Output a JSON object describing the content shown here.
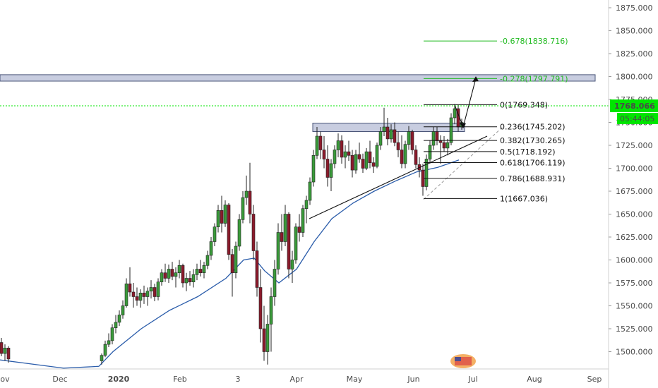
{
  "chart_data": {
    "type": "candlestick",
    "title": "",
    "y_axis": {
      "side": "right",
      "range": [
        1486,
        1886
      ],
      "ticks": [
        "1875.000",
        "1850.000",
        "1825.000",
        "1800.000",
        "1775.000",
        "1750.000",
        "1725.000",
        "1700.000",
        "1675.000",
        "1650.000",
        "1625.000",
        "1600.000",
        "1575.000",
        "1550.000",
        "1525.000",
        "1500.000"
      ]
    },
    "x_axis": {
      "ticks": [
        "ov",
        "Dec",
        "2020",
        "Feb",
        "3",
        "Apr",
        "May",
        "Jun",
        "Jul",
        "Aug",
        "Sep"
      ]
    },
    "last_price": {
      "label": "1768.066",
      "value": 1768.066,
      "countdown": "05:44:05",
      "color": "#00e600"
    },
    "resistance_zone": {
      "low": 1795,
      "high": 1802,
      "color": "#c8cde0"
    },
    "breakout_zone": {
      "low": 1740,
      "high": 1750,
      "color": "#c8cde0"
    },
    "fibonacci": [
      {
        "label": "0(1769.348)",
        "value": 1769.348
      },
      {
        "label": "0.236(1745.202)",
        "value": 1745.202
      },
      {
        "label": "0.382(1730.265)",
        "value": 1730.265
      },
      {
        "label": "0.5(1718.192)",
        "value": 1718.192
      },
      {
        "label": "0.618(1706.119)",
        "value": 1706.119
      },
      {
        "label": "0.786(1688.931)",
        "value": 1688.931
      },
      {
        "label": "1(1667.036)",
        "value": 1667.036
      }
    ],
    "fib_extensions": [
      {
        "label": "-0.678(1838.716)",
        "value": 1838.716,
        "color": "#22bb22"
      },
      {
        "label": "-0.278(1797.791)",
        "value": 1797.791,
        "color": "#22bb22"
      }
    ],
    "moving_average": {
      "color": "#2a5caa",
      "points": [
        [
          0,
          1491
        ],
        [
          40,
          1487
        ],
        [
          90,
          1482
        ],
        [
          140,
          1484
        ],
        [
          160,
          1500
        ],
        [
          200,
          1525
        ],
        [
          240,
          1545
        ],
        [
          280,
          1560
        ],
        [
          320,
          1580
        ],
        [
          345,
          1600
        ],
        [
          360,
          1602
        ],
        [
          375,
          1588
        ],
        [
          395,
          1575
        ],
        [
          420,
          1590
        ],
        [
          445,
          1620
        ],
        [
          470,
          1645
        ],
        [
          500,
          1662
        ],
        [
          530,
          1675
        ],
        [
          560,
          1686
        ],
        [
          590,
          1696
        ],
        [
          620,
          1701
        ],
        [
          650,
          1709
        ]
      ]
    },
    "candles_ohlc": [
      [
        2,
        1510,
        1515,
        1495,
        1498
      ],
      [
        7,
        1498,
        1508,
        1490,
        1504
      ],
      [
        12,
        1504,
        1506,
        1488,
        1492
      ],
      [
        144,
        1490,
        1498,
        1486,
        1496
      ],
      [
        149,
        1496,
        1512,
        1494,
        1508
      ],
      [
        154,
        1508,
        1520,
        1505,
        1512
      ],
      [
        159,
        1512,
        1530,
        1508,
        1526
      ],
      [
        164,
        1526,
        1540,
        1520,
        1532
      ],
      [
        169,
        1532,
        1545,
        1528,
        1540
      ],
      [
        174,
        1540,
        1556,
        1536,
        1550
      ],
      [
        179,
        1550,
        1580,
        1548,
        1574
      ],
      [
        184,
        1574,
        1592,
        1560,
        1565
      ],
      [
        189,
        1565,
        1575,
        1548,
        1560
      ],
      [
        194,
        1560,
        1570,
        1550,
        1556
      ],
      [
        199,
        1556,
        1568,
        1548,
        1564
      ],
      [
        204,
        1564,
        1572,
        1552,
        1560
      ],
      [
        209,
        1560,
        1570,
        1550,
        1566
      ],
      [
        214,
        1566,
        1578,
        1558,
        1570
      ],
      [
        219,
        1570,
        1574,
        1555,
        1560
      ],
      [
        224,
        1560,
        1580,
        1556,
        1576
      ],
      [
        229,
        1576,
        1590,
        1572,
        1586
      ],
      [
        234,
        1586,
        1596,
        1576,
        1580
      ],
      [
        239,
        1580,
        1595,
        1575,
        1590
      ],
      [
        244,
        1590,
        1598,
        1578,
        1582
      ],
      [
        249,
        1582,
        1592,
        1570,
        1586
      ],
      [
        254,
        1586,
        1600,
        1580,
        1594
      ],
      [
        259,
        1594,
        1596,
        1570,
        1575
      ],
      [
        264,
        1575,
        1586,
        1566,
        1580
      ],
      [
        269,
        1580,
        1588,
        1572,
        1576
      ],
      [
        274,
        1576,
        1590,
        1570,
        1584
      ],
      [
        279,
        1584,
        1596,
        1578,
        1590
      ],
      [
        284,
        1590,
        1600,
        1582,
        1586
      ],
      [
        289,
        1586,
        1598,
        1580,
        1594
      ],
      [
        294,
        1594,
        1610,
        1590,
        1605
      ],
      [
        299,
        1605,
        1625,
        1600,
        1620
      ],
      [
        304,
        1620,
        1640,
        1615,
        1636
      ],
      [
        309,
        1636,
        1660,
        1630,
        1654
      ],
      [
        314,
        1654,
        1670,
        1630,
        1640
      ],
      [
        319,
        1640,
        1665,
        1636,
        1660
      ],
      [
        324,
        1660,
        1662,
        1600,
        1606
      ],
      [
        329,
        1606,
        1612,
        1560,
        1586
      ],
      [
        334,
        1586,
        1620,
        1580,
        1615
      ],
      [
        339,
        1615,
        1650,
        1610,
        1644
      ],
      [
        344,
        1644,
        1675,
        1640,
        1668
      ],
      [
        349,
        1668,
        1692,
        1660,
        1675
      ],
      [
        354,
        1675,
        1706,
        1640,
        1650
      ],
      [
        359,
        1650,
        1660,
        1600,
        1610
      ],
      [
        364,
        1610,
        1620,
        1560,
        1570
      ],
      [
        369,
        1570,
        1590,
        1510,
        1525
      ],
      [
        374,
        1525,
        1550,
        1490,
        1500
      ],
      [
        379,
        1500,
        1540,
        1486,
        1530
      ],
      [
        384,
        1530,
        1570,
        1500,
        1560
      ],
      [
        389,
        1560,
        1600,
        1550,
        1590
      ],
      [
        394,
        1590,
        1640,
        1584,
        1630
      ],
      [
        399,
        1630,
        1650,
        1610,
        1620
      ],
      [
        404,
        1620,
        1660,
        1615,
        1650
      ],
      [
        409,
        1650,
        1652,
        1580,
        1590
      ],
      [
        414,
        1590,
        1610,
        1575,
        1600
      ],
      [
        419,
        1600,
        1640,
        1596,
        1636
      ],
      [
        424,
        1636,
        1650,
        1620,
        1630
      ],
      [
        429,
        1630,
        1660,
        1625,
        1656
      ],
      [
        434,
        1656,
        1670,
        1640,
        1665
      ],
      [
        439,
        1665,
        1690,
        1660,
        1685
      ],
      [
        444,
        1685,
        1720,
        1680,
        1714
      ],
      [
        449,
        1714,
        1745,
        1710,
        1735
      ],
      [
        454,
        1735,
        1740,
        1710,
        1720
      ],
      [
        459,
        1720,
        1735,
        1700,
        1710
      ],
      [
        464,
        1710,
        1725,
        1680,
        1690
      ],
      [
        469,
        1690,
        1710,
        1675,
        1705
      ],
      [
        474,
        1705,
        1725,
        1700,
        1720
      ],
      [
        479,
        1720,
        1738,
        1712,
        1730
      ],
      [
        484,
        1730,
        1736,
        1705,
        1712
      ],
      [
        489,
        1712,
        1725,
        1700,
        1718
      ],
      [
        494,
        1718,
        1730,
        1708,
        1714
      ],
      [
        499,
        1714,
        1720,
        1690,
        1698
      ],
      [
        504,
        1698,
        1720,
        1694,
        1715
      ],
      [
        509,
        1715,
        1728,
        1706,
        1710
      ],
      [
        514,
        1710,
        1716,
        1695,
        1700
      ],
      [
        519,
        1700,
        1722,
        1698,
        1718
      ],
      [
        524,
        1718,
        1730,
        1700,
        1706
      ],
      [
        529,
        1706,
        1712,
        1695,
        1702
      ],
      [
        534,
        1702,
        1728,
        1700,
        1725
      ],
      [
        539,
        1725,
        1745,
        1720,
        1740
      ],
      [
        544,
        1740,
        1766,
        1735,
        1745
      ],
      [
        549,
        1745,
        1755,
        1725,
        1732
      ],
      [
        554,
        1732,
        1748,
        1728,
        1742
      ],
      [
        559,
        1742,
        1750,
        1724,
        1728
      ],
      [
        564,
        1728,
        1740,
        1712,
        1720
      ],
      [
        569,
        1720,
        1736,
        1700,
        1705
      ],
      [
        574,
        1705,
        1730,
        1700,
        1726
      ],
      [
        579,
        1726,
        1746,
        1720,
        1740
      ],
      [
        584,
        1740,
        1742,
        1715,
        1720
      ],
      [
        589,
        1720,
        1725,
        1700,
        1704
      ],
      [
        594,
        1704,
        1712,
        1690,
        1698
      ],
      [
        599,
        1698,
        1705,
        1670,
        1680
      ],
      [
        604,
        1680,
        1715,
        1676,
        1710
      ],
      [
        609,
        1710,
        1730,
        1705,
        1725
      ],
      [
        614,
        1725,
        1745,
        1720,
        1740
      ],
      [
        619,
        1740,
        1745,
        1725,
        1730
      ],
      [
        624,
        1730,
        1736,
        1705,
        1728
      ],
      [
        629,
        1728,
        1735,
        1718,
        1722
      ],
      [
        634,
        1722,
        1732,
        1714,
        1728
      ],
      [
        639,
        1728,
        1760,
        1725,
        1755
      ],
      [
        644,
        1755,
        1770,
        1748,
        1765
      ],
      [
        649,
        1765,
        1769,
        1740,
        1745
      ],
      [
        654,
        1745,
        1754,
        1742,
        1750
      ]
    ]
  }
}
